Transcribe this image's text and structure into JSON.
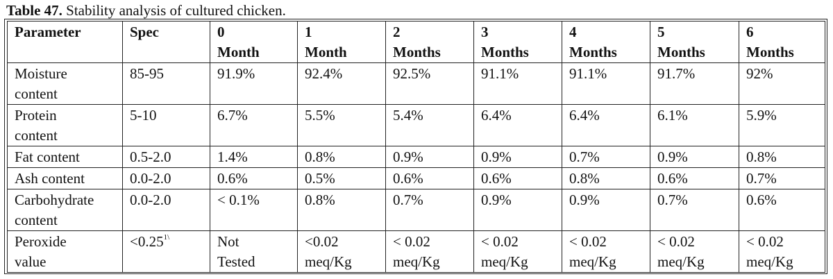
{
  "caption": {
    "label": "Table 47.",
    "text": " Stability analysis of cultured chicken."
  },
  "table": {
    "headers": [
      [
        "Parameter"
      ],
      [
        "Spec"
      ],
      [
        "0",
        "Month"
      ],
      [
        "1",
        "Month"
      ],
      [
        "2",
        "Months"
      ],
      [
        "3",
        "Months"
      ],
      [
        "4",
        "Months"
      ],
      [
        "5",
        "Months"
      ],
      [
        "6",
        "Months"
      ]
    ],
    "rows": [
      {
        "parameter": [
          "Moisture",
          "content"
        ],
        "spec": "85-95",
        "spec_note": "",
        "values": [
          [
            "91.9%"
          ],
          [
            "92.4%"
          ],
          [
            "92.5%"
          ],
          [
            "91.1%"
          ],
          [
            "91.1%"
          ],
          [
            "91.7%"
          ],
          [
            "92%"
          ]
        ]
      },
      {
        "parameter": [
          "Protein",
          "content"
        ],
        "spec": "5-10",
        "spec_note": "",
        "values": [
          [
            "6.7%"
          ],
          [
            "5.5%"
          ],
          [
            "5.4%"
          ],
          [
            "6.4%"
          ],
          [
            "6.4%"
          ],
          [
            "6.1%"
          ],
          [
            "5.9%"
          ]
        ]
      },
      {
        "parameter": [
          "Fat content"
        ],
        "spec": "0.5-2.0",
        "spec_note": "",
        "values": [
          [
            "1.4%"
          ],
          [
            "0.8%"
          ],
          [
            "0.9%"
          ],
          [
            "0.9%"
          ],
          [
            "0.7%"
          ],
          [
            "0.9%"
          ],
          [
            "0.8%"
          ]
        ]
      },
      {
        "parameter": [
          "Ash content"
        ],
        "spec": "0.0-2.0",
        "spec_note": "",
        "values": [
          [
            "0.6%"
          ],
          [
            "0.5%"
          ],
          [
            "0.6%"
          ],
          [
            "0.6%"
          ],
          [
            "0.8%"
          ],
          [
            "0.6%"
          ],
          [
            "0.7%"
          ]
        ]
      },
      {
        "parameter": [
          "Carbohydrate",
          "content"
        ],
        "spec": "0.0-2.0",
        "spec_note": "",
        "values": [
          [
            "< 0.1%"
          ],
          [
            "0.8%"
          ],
          [
            "0.7%"
          ],
          [
            "0.9%"
          ],
          [
            "0.9%"
          ],
          [
            "0.7%"
          ],
          [
            "0.6%"
          ]
        ]
      },
      {
        "parameter": [
          "Peroxide",
          "value"
        ],
        "spec": "<0.25",
        "spec_note": "1\\",
        "values": [
          [
            "Not",
            "Tested"
          ],
          [
            "<0.02",
            "meq/Kg"
          ],
          [
            "< 0.02",
            "meq/Kg"
          ],
          [
            "< 0.02",
            "meq/Kg"
          ],
          [
            "< 0.02",
            "meq/Kg"
          ],
          [
            "< 0.02",
            "meq/Kg"
          ],
          [
            "< 0.02",
            "meq/Kg"
          ]
        ]
      }
    ]
  }
}
